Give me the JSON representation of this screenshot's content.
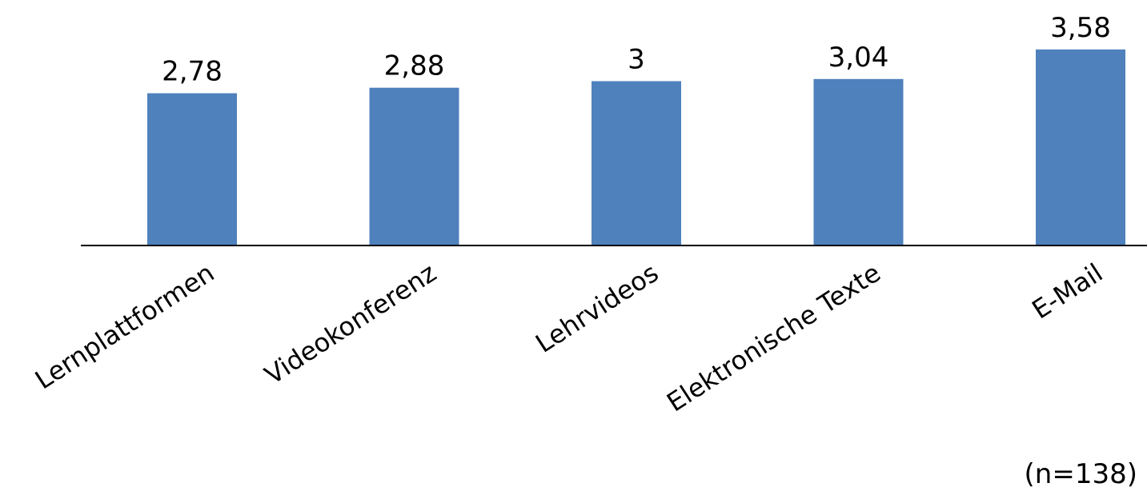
{
  "chart_data": {
    "type": "bar",
    "categories": [
      "Lernplattformen",
      "Videokonferenz",
      "Lehrvideos",
      "Elektronische Texte",
      "E-Mail"
    ],
    "values": [
      2.78,
      2.88,
      3,
      3.04,
      3.58
    ],
    "value_labels": [
      "2,78",
      "2,88",
      "3",
      "3,04",
      "3,58"
    ],
    "title": "",
    "xlabel": "",
    "ylabel": "",
    "ylim": [
      0,
      3.9
    ],
    "grid": false,
    "legend": "none",
    "bar_color": "#4f81bd",
    "axis_color": "#000000"
  },
  "note": "(n=138)"
}
